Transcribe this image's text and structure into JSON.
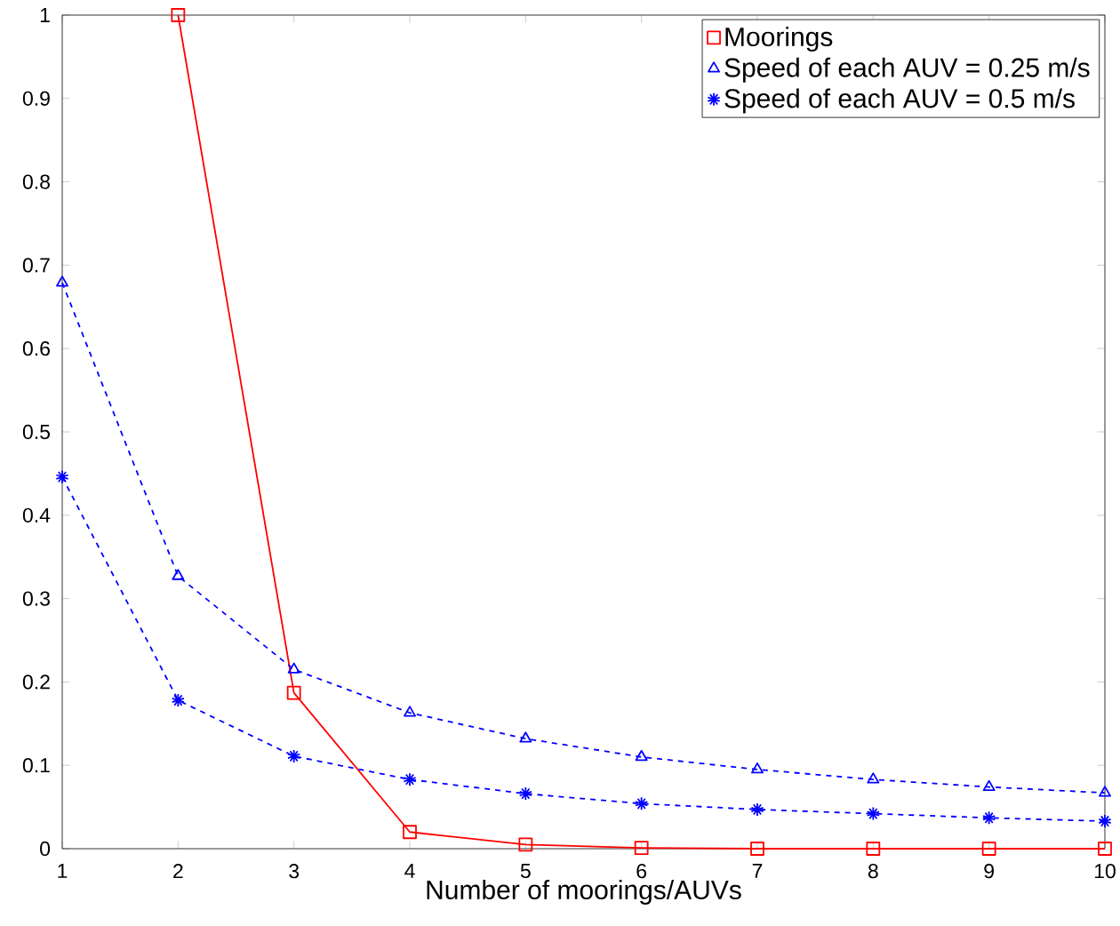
{
  "chart_data": {
    "type": "line",
    "xlabel": "Number of moorings/AUVs",
    "x": [
      1,
      2,
      3,
      4,
      5,
      6,
      7,
      8,
      9,
      10
    ],
    "series": [
      {
        "name": "Moorings",
        "color": "#ff0000",
        "marker": "square",
        "line_style": "solid",
        "values": [
          null,
          1.0,
          0.187,
          0.02,
          0.005,
          0.001,
          0,
          0,
          0,
          0
        ]
      },
      {
        "name": "Speed of each AUV = 0.25 m/s",
        "color": "#0000ff",
        "marker": "triangle",
        "line_style": "dashed",
        "values": [
          0.679,
          0.327,
          0.215,
          0.163,
          0.132,
          0.11,
          0.095,
          0.083,
          0.074,
          0.067
        ]
      },
      {
        "name": "Speed of each AUV = 0.5 m/s",
        "color": "#0000ff",
        "marker": "cross",
        "line_style": "dashed",
        "values": [
          0.446,
          0.178,
          0.111,
          0.083,
          0.066,
          0.054,
          0.047,
          0.042,
          0.037,
          0.033
        ]
      }
    ],
    "xlim": [
      1,
      10
    ],
    "ylim": [
      0,
      1
    ],
    "xticks": [
      1,
      2,
      3,
      4,
      5,
      6,
      7,
      8,
      9,
      10
    ],
    "yticks": [
      0,
      0.1,
      0.2,
      0.3,
      0.4,
      0.5,
      0.6,
      0.7,
      0.8,
      0.9,
      1
    ],
    "grid": false,
    "legend": "top right"
  }
}
